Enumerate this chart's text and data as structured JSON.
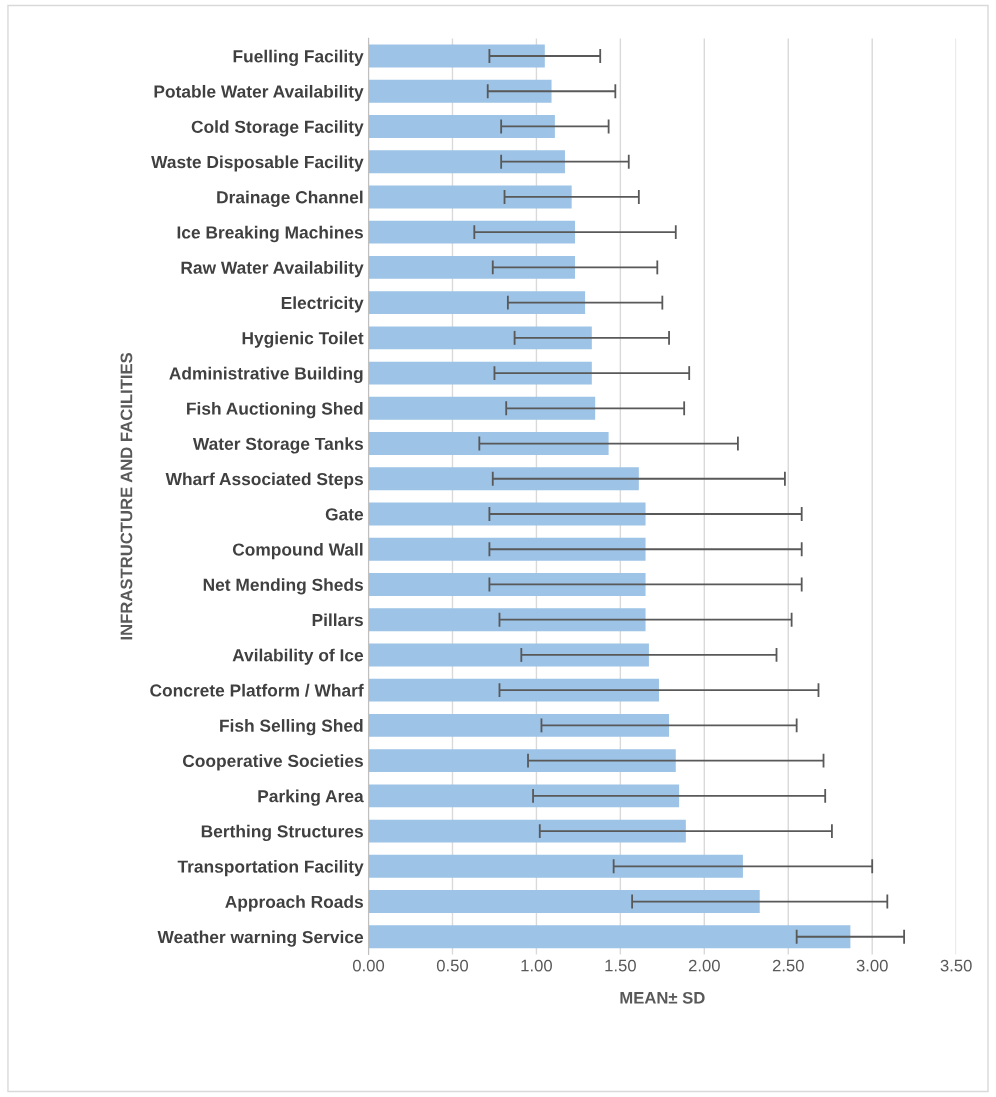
{
  "chart_data": {
    "type": "bar",
    "orientation": "horizontal",
    "xlabel": "MEAN± SD",
    "ylabel": "INFRASTRUCTURE AND FACILITIES",
    "categories": [
      "Fuelling Facility",
      "Potable Water Availability",
      "Cold Storage Facility",
      "Waste Disposable Facility",
      "Drainage Channel",
      "Ice Breaking Machines",
      "Raw Water Availability",
      "Electricity",
      "Hygienic Toilet",
      "Administrative Building",
      "Fish Auctioning Shed",
      "Water Storage Tanks",
      "Wharf Associated Steps",
      "Gate",
      "Compound Wall",
      "Net Mending Sheds",
      "Pillars",
      "Avilability of Ice",
      "Concrete Platform / Wharf",
      "Fish Selling Shed",
      "Cooperative Societies",
      "Parking Area",
      "Berthing Structures",
      "Transportation Facility",
      "Approach Roads",
      "Weather warning Service"
    ],
    "values": [
      1.05,
      1.09,
      1.11,
      1.17,
      1.21,
      1.23,
      1.23,
      1.29,
      1.33,
      1.33,
      1.35,
      1.43,
      1.61,
      1.65,
      1.65,
      1.65,
      1.65,
      1.67,
      1.73,
      1.79,
      1.83,
      1.85,
      1.89,
      2.23,
      2.33,
      2.87
    ],
    "errors": [
      0.33,
      0.38,
      0.32,
      0.38,
      0.4,
      0.6,
      0.49,
      0.46,
      0.46,
      0.58,
      0.53,
      0.77,
      0.87,
      0.93,
      0.93,
      0.93,
      0.87,
      0.76,
      0.95,
      0.76,
      0.88,
      0.87,
      0.87,
      0.77,
      0.76,
      0.32
    ],
    "color": "#9dc3e6",
    "xlim": [
      0,
      3.5
    ],
    "xticks": [
      {
        "value": 0,
        "label": "0.00"
      },
      {
        "value": 0.5,
        "label": "0.50"
      },
      {
        "value": 1,
        "label": "1.00"
      },
      {
        "value": 1.5,
        "label": "1.50"
      },
      {
        "value": 2,
        "label": "2.00"
      },
      {
        "value": 2.5,
        "label": "2.50"
      },
      {
        "value": 3,
        "label": "3.00"
      },
      {
        "value": 3.5,
        "label": "3.50"
      }
    ],
    "grid": "x",
    "legend": false
  }
}
